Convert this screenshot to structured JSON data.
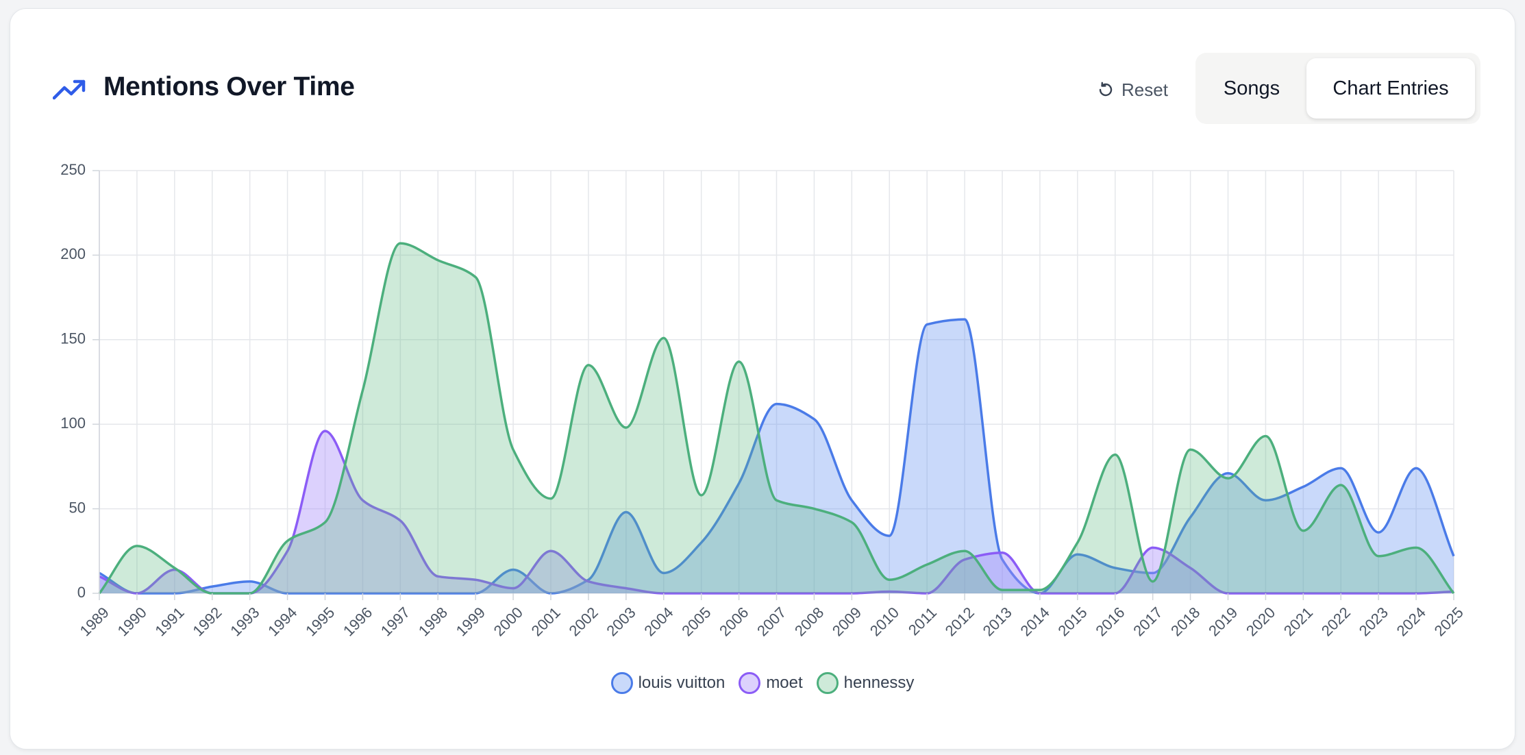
{
  "header": {
    "title": "Mentions Over Time",
    "title_icon": "trending-up-icon",
    "reset_label": "Reset",
    "reset_icon": "reset-icon",
    "toggle": {
      "options": [
        "Songs",
        "Chart Entries"
      ],
      "selected": "Chart Entries"
    }
  },
  "chart_data": {
    "type": "area",
    "title": "",
    "xlabel": "",
    "ylabel": "",
    "x": [
      1989,
      1990,
      1991,
      1992,
      1993,
      1994,
      1995,
      1996,
      1997,
      1998,
      1999,
      2000,
      2001,
      2002,
      2003,
      2004,
      2005,
      2006,
      2007,
      2008,
      2009,
      2010,
      2011,
      2012,
      2013,
      2014,
      2015,
      2016,
      2017,
      2018,
      2019,
      2020,
      2021,
      2022,
      2023,
      2024,
      2025
    ],
    "ylim": [
      0,
      250
    ],
    "yticks": [
      0,
      50,
      100,
      150,
      200,
      250
    ],
    "grid": true,
    "legend_position": "bottom",
    "series": [
      {
        "name": "louis vuitton",
        "color": "#4a7be8",
        "fill": "rgba(100,145,240,0.35)",
        "values": [
          12,
          0,
          0,
          4,
          7,
          0,
          0,
          0,
          0,
          0,
          0,
          14,
          0,
          8,
          48,
          12,
          30,
          65,
          112,
          103,
          55,
          34,
          159,
          162,
          20,
          0,
          23,
          15,
          12,
          45,
          71,
          55,
          63,
          74,
          36,
          74,
          22
        ]
      },
      {
        "name": "moet",
        "color": "#8b5cf6",
        "fill": "rgba(167,139,250,0.4)",
        "values": [
          10,
          0,
          14,
          0,
          0,
          25,
          96,
          55,
          43,
          10,
          8,
          3,
          25,
          7,
          3,
          0,
          0,
          0,
          0,
          0,
          0,
          1,
          0,
          20,
          24,
          0,
          0,
          0,
          27,
          15,
          0,
          0,
          0,
          0,
          0,
          0,
          1
        ]
      },
      {
        "name": "hennessy",
        "color": "#4caf7d",
        "fill": "rgba(92,184,130,0.3)",
        "values": [
          0,
          28,
          15,
          0,
          0,
          31,
          42,
          120,
          207,
          197,
          187,
          85,
          56,
          135,
          98,
          151,
          58,
          137,
          55,
          50,
          42,
          8,
          17,
          25,
          2,
          2,
          30,
          82,
          7,
          85,
          68,
          93,
          37,
          64,
          22,
          27,
          0
        ]
      }
    ]
  }
}
